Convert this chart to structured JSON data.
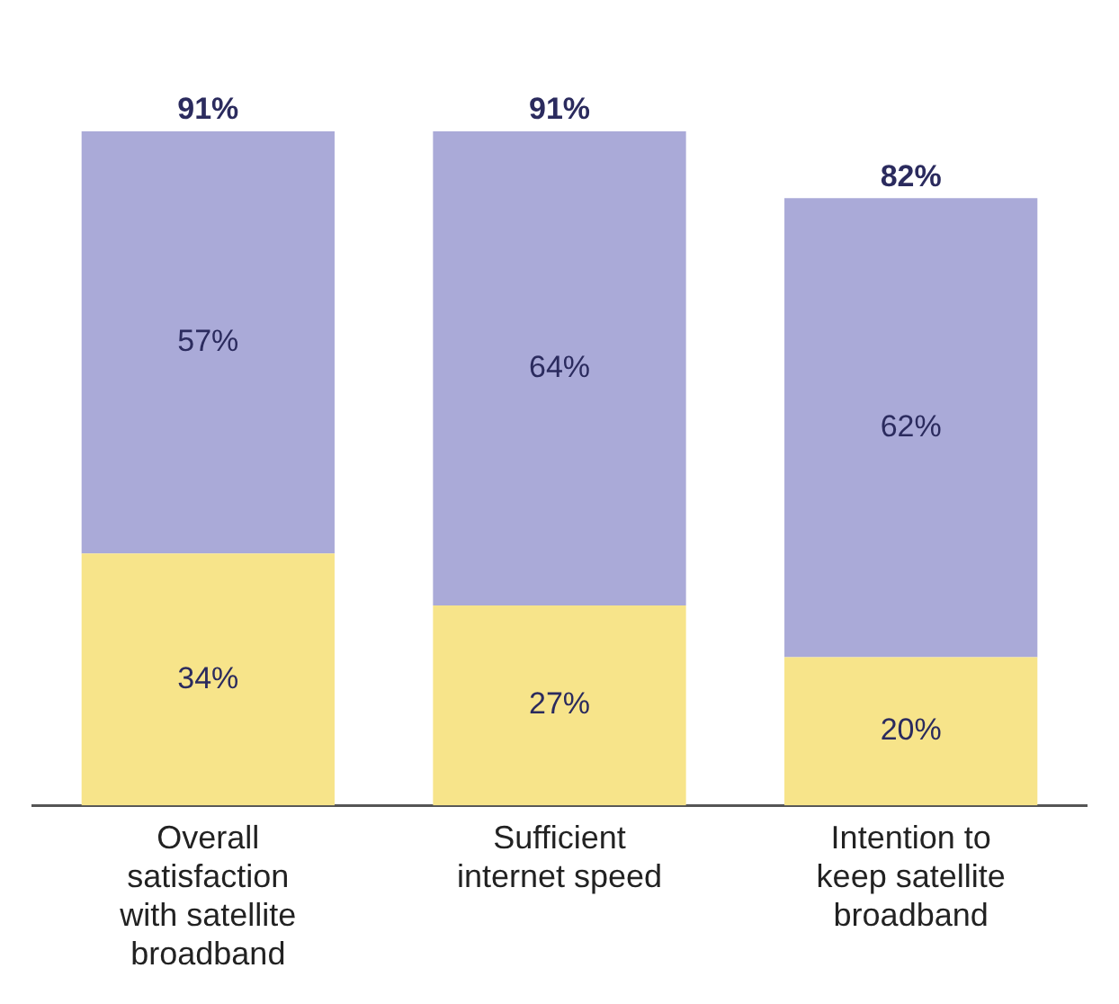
{
  "chart_data": {
    "type": "bar",
    "stacked": true,
    "grid": false,
    "legend": false,
    "categories": [
      "Overall satisfaction with satellite broadband",
      "Sufficient internet speed",
      "Intention to keep satellite broadband"
    ],
    "series": [
      {
        "color": "#f7e48a",
        "values": [
          34,
          27,
          20
        ],
        "value_labels": [
          "34%",
          "27%",
          "20%"
        ]
      },
      {
        "color": "#aaaad8",
        "values": [
          57,
          64,
          62
        ],
        "value_labels": [
          "57%",
          "64%",
          "62%"
        ]
      }
    ],
    "totals": [
      "91%",
      "91%",
      "82%"
    ]
  }
}
